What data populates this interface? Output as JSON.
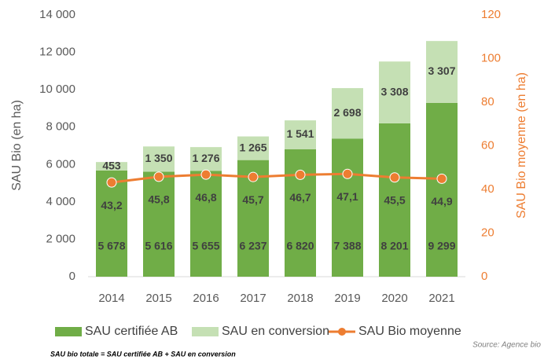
{
  "chart_data": {
    "type": "bar",
    "stacked": true,
    "categories": [
      "2014",
      "2015",
      "2016",
      "2017",
      "2018",
      "2019",
      "2020",
      "2021"
    ],
    "series": [
      {
        "name": "SAU certifiée AB",
        "color": "#70ad47",
        "values": [
          5678,
          5616,
          5655,
          6237,
          6820,
          7388,
          8201,
          9299
        ],
        "value_labels": [
          "5 678",
          "5 616",
          "5 655",
          "6 237",
          "6 820",
          "7 388",
          "8 201",
          "9 299"
        ]
      },
      {
        "name": "SAU en conversion",
        "color": "#c5e0b4",
        "values": [
          453,
          1350,
          1276,
          1265,
          1541,
          2698,
          3308,
          3307
        ],
        "value_labels": [
          "453",
          "1 350",
          "1 276",
          "1 265",
          "1 541",
          "2 698",
          "3 308",
          "3 307"
        ]
      },
      {
        "name": "SAU Bio moyenne",
        "color": "#ed7d31",
        "type": "line",
        "axis": "y2",
        "values": [
          43.2,
          45.8,
          46.8,
          45.7,
          46.7,
          47.1,
          45.5,
          44.9
        ],
        "value_labels": [
          "43,2",
          "45,8",
          "46,8",
          "45,7",
          "46,7",
          "47,1",
          "45,5",
          "44,9"
        ]
      }
    ],
    "y_label": "SAU Bio (en ha)",
    "y2_label": "SAU Bio moyenne (en ha)",
    "ylim": [
      0,
      14000
    ],
    "yticks": [
      0,
      {
        "value": 2000,
        "label": "2 000"
      },
      {
        "value": 4000,
        "label": "4 000"
      },
      {
        "value": 6000,
        "label": "6 000"
      },
      {
        "value": 8000,
        "label": "8 000"
      },
      {
        "value": 10000,
        "label": "10 000"
      },
      {
        "value": 12000,
        "label": "12 000"
      },
      {
        "value": 14000,
        "label": "14 000"
      }
    ],
    "y2lim": [
      0,
      120
    ],
    "y2ticks": [
      0,
      20,
      40,
      60,
      80,
      100,
      120
    ],
    "legend": "bottom",
    "footnote": "SAU bio totale = SAU certifiée AB + SAU en conversion",
    "source": "Source: Agence bio"
  }
}
